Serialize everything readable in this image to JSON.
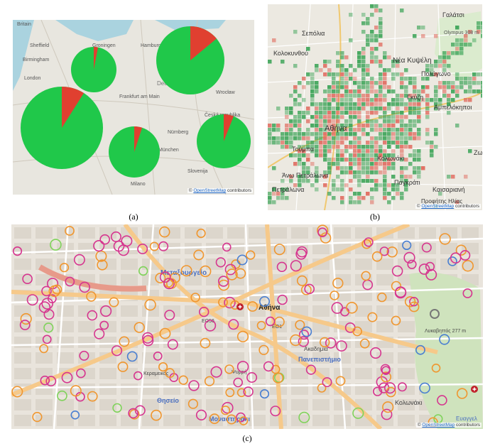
{
  "captions": {
    "a": "(a)",
    "b": "(b)",
    "c": "(c)"
  },
  "attribution": {
    "prefix": "©",
    "link": "OpenStreetMap",
    "suffix": "contributors"
  },
  "colors": {
    "green": "#20c84a",
    "red": "#e04030",
    "magenta": "#d6358f",
    "orange": "#f0962e",
    "blue": "#4a7fd1",
    "lightgreen": "#7fd35a"
  },
  "panel_a": {
    "labels": [
      "Britain",
      "Sheffield",
      "Birmingham",
      "London",
      "Groningen",
      "Hamburg",
      "Frankfurt am Main",
      "Deutschland",
      "Wrocław",
      "Nürnberg",
      "München",
      "Česká republika",
      "Slovenija",
      "Milano"
    ],
    "pies": [
      {
        "share_red": 0.03
      },
      {
        "share_red": 0.09
      },
      {
        "share_red": 0.14
      },
      {
        "share_red": 0.05
      },
      {
        "share_red": 0.06
      }
    ]
  },
  "panel_b": {
    "labels": [
      "Σεπόλια",
      "Γαλάτσι",
      "Κολοκυνθού",
      "Olympus 308 m",
      "Νέα Κυψέλη",
      "Πολύγωνο",
      "Γκύζη",
      "Αμπελόκηποι",
      "Αθήνα",
      "Τούμπα",
      "Κολωνάκι",
      "Ζω",
      "Άνω Πετράλωνα",
      "Πετράλωνα",
      "Παγκράτι",
      "Καισαριανή",
      "Προφήτης Ηλίας"
    ]
  },
  "panel_c": {
    "labels": [
      "Μεταξουργείο",
      "Αθήνα",
      "Πανεπιστήμιο",
      "Θησείο",
      "Μοναστηράκι",
      "Ακαδημία",
      "Κολωνάκι",
      "Λυκαβηττός 277 m",
      "EO56",
      "EO1",
      "Κεραμεικός",
      "Ψυρρή",
      "Ευαγγελ"
    ]
  }
}
